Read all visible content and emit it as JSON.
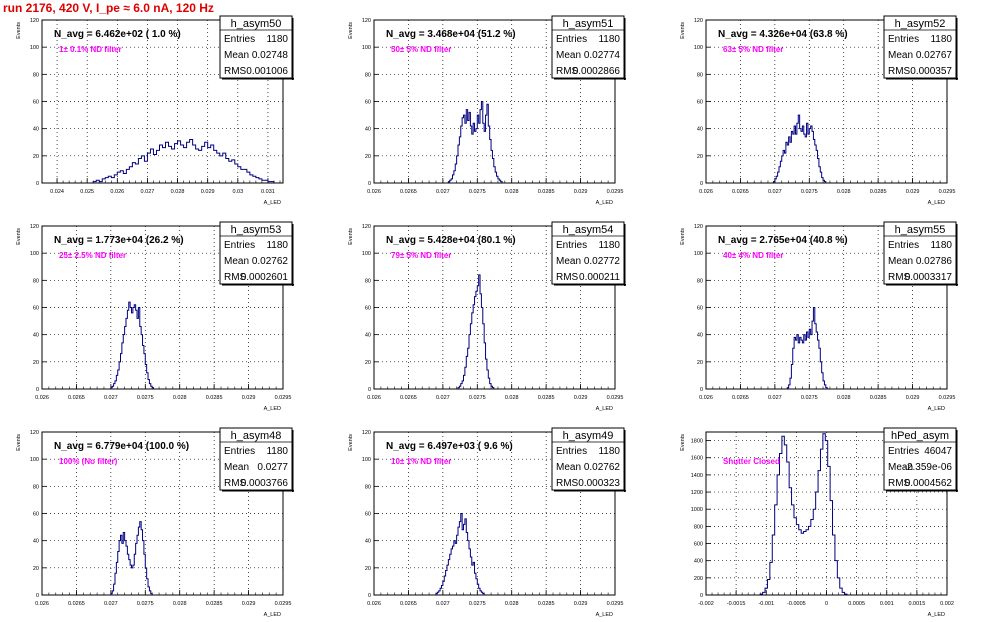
{
  "page_title": "run 2176,   420 V, I_pe ≈ 6.0 nA, 120 Hz",
  "stats_labels": {
    "entries": "Entries",
    "mean": "Mean",
    "rms": "RMS"
  },
  "chart_data": [
    {
      "type": "histogram",
      "name": "h_asym50",
      "ylabel": "Events",
      "xlabel": "A_LED",
      "navg": "N_avg = 6.462e+02 ( 1.0 %)",
      "filter": "1± 0.1% ND filter",
      "stats": {
        "entries": "1180",
        "mean": "0.02748",
        "rms": "0.001006"
      },
      "xlim": [
        0.0235,
        0.0315
      ],
      "ylim": [
        0,
        120
      ],
      "xticks": [
        "0.024",
        "0.025",
        "0.026",
        "0.027",
        "0.028",
        "0.029",
        "0.03",
        "0.031"
      ],
      "yticks": [
        "0",
        "20",
        "40",
        "60",
        "80",
        "100",
        "120"
      ],
      "grid": true,
      "bin_start": 0.0252,
      "bin_width": 0.0001,
      "counts": [
        1,
        2,
        1,
        3,
        4,
        5,
        4,
        6,
        8,
        9,
        7,
        10,
        12,
        15,
        14,
        18,
        20,
        16,
        22,
        25,
        21,
        24,
        28,
        26,
        30,
        27,
        25,
        29,
        31,
        28,
        26,
        30,
        32,
        28,
        25,
        24,
        27,
        30,
        26,
        28,
        24,
        22,
        20,
        22,
        18,
        16,
        17,
        14,
        12,
        10,
        10,
        8,
        6,
        5,
        4,
        3,
        2,
        2,
        1,
        1
      ]
    },
    {
      "type": "histogram",
      "name": "h_asym51",
      "ylabel": "Events",
      "xlabel": "A_LED",
      "navg": "N_avg = 3.468e+04 (51.2 %)",
      "filter": "50± 5% ND filter",
      "stats": {
        "entries": "1180",
        "mean": "0.02774",
        "rms": "0.0002866"
      },
      "xlim": [
        0.026,
        0.0295
      ],
      "ylim": [
        0,
        120
      ],
      "xticks": [
        "0.026",
        "0.0265",
        "0.027",
        "0.0275",
        "0.028",
        "0.0285",
        "0.029",
        "0.0295"
      ],
      "yticks": [
        "0",
        "20",
        "40",
        "60",
        "80",
        "100",
        "120"
      ],
      "grid": true,
      "bin_start": 0.02708,
      "bin_width": 2e-05,
      "counts": [
        1,
        2,
        3,
        6,
        9,
        14,
        20,
        28,
        34,
        42,
        48,
        50,
        44,
        54,
        46,
        52,
        42,
        36,
        44,
        38,
        40,
        50,
        44,
        54,
        60,
        44,
        38,
        50,
        58,
        42,
        32,
        24,
        18,
        12,
        8,
        5,
        3,
        2,
        1
      ]
    },
    {
      "type": "histogram",
      "name": "h_asym52",
      "ylabel": "Events",
      "xlabel": "A_LED",
      "navg": "N_avg = 4.326e+04 (63.8 %)",
      "filter": "63± 5% ND filter",
      "stats": {
        "entries": "1180",
        "mean": "0.02767",
        "rms": "0.000357"
      },
      "xlim": [
        0.026,
        0.0295
      ],
      "ylim": [
        0,
        120
      ],
      "xticks": [
        "0.026",
        "0.0265",
        "0.027",
        "0.0275",
        "0.028",
        "0.0285",
        "0.029",
        "0.0295"
      ],
      "yticks": [
        "0",
        "20",
        "40",
        "60",
        "80",
        "100",
        "120"
      ],
      "grid": true,
      "bin_start": 0.02698,
      "bin_width": 2e-05,
      "counts": [
        1,
        3,
        5,
        8,
        12,
        16,
        20,
        24,
        22,
        30,
        28,
        34,
        30,
        38,
        36,
        42,
        36,
        44,
        50,
        40,
        38,
        42,
        36,
        34,
        44,
        36,
        40,
        42,
        38,
        32,
        28,
        24,
        18,
        12,
        8,
        4,
        2,
        1
      ]
    },
    {
      "type": "histogram",
      "name": "h_asym53",
      "ylabel": "Events",
      "xlabel": "A_LED",
      "navg": "N_avg = 1.773e+04 (26.2 %)",
      "filter": "25± 2.5% ND filter",
      "stats": {
        "entries": "1180",
        "mean": "0.02762",
        "rms": "0.0002601"
      },
      "xlim": [
        0.026,
        0.0295
      ],
      "ylim": [
        0,
        120
      ],
      "xticks": [
        "0.026",
        "0.0265",
        "0.027",
        "0.0275",
        "0.028",
        "0.0285",
        "0.029",
        "0.0295"
      ],
      "yticks": [
        "0",
        "20",
        "40",
        "60",
        "80",
        "100",
        "120"
      ],
      "grid": true,
      "bin_start": 0.027,
      "bin_width": 2e-05,
      "counts": [
        1,
        2,
        4,
        6,
        10,
        14,
        20,
        26,
        34,
        40,
        46,
        52,
        58,
        64,
        60,
        56,
        60,
        62,
        58,
        52,
        60,
        46,
        40,
        32,
        26,
        18,
        12,
        7,
        4,
        2,
        1
      ]
    },
    {
      "type": "histogram",
      "name": "h_asym54",
      "ylabel": "Events",
      "xlabel": "A_LED",
      "navg": "N_avg = 5.428e+04 (80.1 %)",
      "filter": "79± 5% ND filter",
      "stats": {
        "entries": "1180",
        "mean": "0.02772",
        "rms": "0.000211"
      },
      "xlim": [
        0.026,
        0.0295
      ],
      "ylim": [
        0,
        120
      ],
      "xticks": [
        "0.026",
        "0.0265",
        "0.027",
        "0.0275",
        "0.028",
        "0.0285",
        "0.029",
        "0.0295"
      ],
      "yticks": [
        "0",
        "20",
        "40",
        "60",
        "80",
        "100",
        "120"
      ],
      "grid": true,
      "bin_start": 0.02722,
      "bin_width": 2e-05,
      "counts": [
        1,
        2,
        4,
        6,
        10,
        16,
        24,
        30,
        40,
        48,
        56,
        62,
        68,
        72,
        76,
        84,
        70,
        60,
        48,
        34,
        22,
        14,
        8,
        4,
        2,
        1
      ]
    },
    {
      "type": "histogram",
      "name": "h_asym55",
      "ylabel": "Events",
      "xlabel": "A_LED",
      "navg": "N_avg = 2.765e+04 (40.8 %)",
      "filter": "40± 4% ND filter",
      "stats": {
        "entries": "1180",
        "mean": "0.02786",
        "rms": "0.0003317"
      },
      "xlim": [
        0.026,
        0.0295
      ],
      "ylim": [
        0,
        120
      ],
      "xticks": [
        "0.026",
        "0.0265",
        "0.027",
        "0.0275",
        "0.028",
        "0.0285",
        "0.029",
        "0.0295"
      ],
      "yticks": [
        "0",
        "20",
        "40",
        "60",
        "80",
        "100",
        "120"
      ],
      "grid": true,
      "bin_start": 0.02718,
      "bin_width": 2e-05,
      "counts": [
        1,
        3,
        8,
        18,
        30,
        38,
        36,
        40,
        34,
        38,
        36,
        34,
        40,
        36,
        42,
        38,
        44,
        40,
        50,
        60,
        48,
        42,
        36,
        30,
        20,
        12,
        6,
        3,
        1
      ]
    },
    {
      "type": "histogram",
      "name": "h_asym48",
      "ylabel": "Events",
      "xlabel": "A_LED",
      "navg": "N_avg = 6.779e+04 (100.0 %)",
      "filter": "100% (No filter)",
      "stats": {
        "entries": "1180",
        "mean": "0.0277",
        "rms": "0.0003766"
      },
      "xlim": [
        0.026,
        0.0295
      ],
      "ylim": [
        0,
        120
      ],
      "xticks": [
        "0.026",
        "0.0265",
        "0.027",
        "0.0275",
        "0.028",
        "0.0285",
        "0.029",
        "0.0295"
      ],
      "yticks": [
        "0",
        "20",
        "40",
        "60",
        "80",
        "100",
        "120"
      ],
      "grid": true,
      "bin_start": 0.027,
      "bin_width": 2e-05,
      "counts": [
        1,
        3,
        8,
        16,
        24,
        32,
        40,
        44,
        38,
        46,
        40,
        36,
        30,
        26,
        22,
        20,
        22,
        30,
        38,
        44,
        50,
        54,
        48,
        40,
        30,
        20,
        12,
        6,
        3,
        1
      ]
    },
    {
      "type": "histogram",
      "name": "h_asym49",
      "ylabel": "Events",
      "xlabel": "A_LED",
      "navg": "N_avg = 6.497e+03 ( 9.6 %)",
      "filter": "10± 1% ND filter",
      "stats": {
        "entries": "1180",
        "mean": "0.02762",
        "rms": "0.000323"
      },
      "xlim": [
        0.026,
        0.0295
      ],
      "ylim": [
        0,
        120
      ],
      "xticks": [
        "0.026",
        "0.0265",
        "0.027",
        "0.0275",
        "0.028",
        "0.0285",
        "0.029",
        "0.0295"
      ],
      "yticks": [
        "0",
        "20",
        "40",
        "60",
        "80",
        "100",
        "120"
      ],
      "grid": true,
      "bin_start": 0.0269,
      "bin_width": 2e-05,
      "counts": [
        1,
        2,
        3,
        5,
        7,
        10,
        14,
        18,
        22,
        26,
        30,
        34,
        36,
        40,
        38,
        44,
        50,
        54,
        60,
        48,
        52,
        56,
        46,
        40,
        34,
        28,
        22,
        24,
        16,
        12,
        8,
        5,
        3,
        2,
        1
      ]
    },
    {
      "type": "histogram",
      "name": "hPed_asym",
      "ylabel": "Events",
      "xlabel": "A_LED",
      "navg": "",
      "filter": "Shutter Closed",
      "stats": {
        "entries": "46047",
        "mean": "-2.359e-06",
        "rms": "0.0004562"
      },
      "xlim": [
        -0.002,
        0.002
      ],
      "ylim": [
        0,
        1900
      ],
      "xticks": [
        "-0.002",
        "-0.0015",
        "-0.001",
        "-0.0005",
        "0",
        "0.0005",
        "0.001",
        "0.0015",
        "0.002"
      ],
      "yticks": [
        "0",
        "200",
        "400",
        "600",
        "800",
        "1000",
        "1200",
        "1400",
        "1600",
        "1800"
      ],
      "grid": true,
      "bin_start": -0.0011,
      "bin_width": 4e-05,
      "counts": [
        10,
        30,
        80,
        180,
        380,
        700,
        1050,
        1400,
        1650,
        1850,
        1750,
        1550,
        1250,
        1050,
        900,
        820,
        760,
        720,
        740,
        760,
        800,
        880,
        1000,
        1200,
        1450,
        1700,
        1880,
        1800,
        1500,
        1100,
        700,
        400,
        200,
        80,
        30,
        10
      ]
    }
  ]
}
